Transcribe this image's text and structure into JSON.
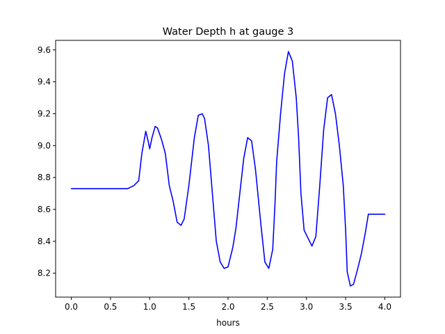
{
  "chart_data": {
    "type": "line",
    "title": "Water Depth h at gauge 3",
    "xlabel": "hours",
    "ylabel": "",
    "xlim": [
      -0.2,
      4.2
    ],
    "ylim": [
      8.05,
      9.66
    ],
    "xticks": [
      0.0,
      0.5,
      1.0,
      1.5,
      2.0,
      2.5,
      3.0,
      3.5,
      4.0
    ],
    "xtick_labels": [
      "0.0",
      "0.5",
      "1.0",
      "1.5",
      "2.0",
      "2.5",
      "3.0",
      "3.5",
      "4.0"
    ],
    "yticks": [
      8.2,
      8.4,
      8.6,
      8.8,
      9.0,
      9.2,
      9.4,
      9.6
    ],
    "ytick_labels": [
      "8.2",
      "8.4",
      "8.6",
      "8.8",
      "9.0",
      "9.2",
      "9.4",
      "9.6"
    ],
    "grid": false,
    "series": [
      {
        "color": "#0000ff",
        "x": [
          0.0,
          0.3,
          0.6,
          0.72,
          0.8,
          0.86,
          0.9,
          0.95,
          0.98,
          1.0,
          1.03,
          1.07,
          1.1,
          1.15,
          1.2,
          1.25,
          1.3,
          1.35,
          1.4,
          1.44,
          1.5,
          1.57,
          1.62,
          1.67,
          1.7,
          1.75,
          1.8,
          1.85,
          1.9,
          1.95,
          2.0,
          2.06,
          2.1,
          2.15,
          2.2,
          2.25,
          2.3,
          2.35,
          2.38,
          2.42,
          2.47,
          2.52,
          2.57,
          2.6,
          2.62,
          2.67,
          2.72,
          2.77,
          2.82,
          2.87,
          2.9,
          2.93,
          2.97,
          3.02,
          3.07,
          3.12,
          3.17,
          3.22,
          3.27,
          3.32,
          3.37,
          3.42,
          3.47,
          3.5,
          3.52,
          3.56,
          3.6,
          3.65,
          3.7,
          3.75,
          3.79,
          3.82,
          3.85,
          3.9,
          3.95,
          3.98,
          4.0
        ],
        "y": [
          8.73,
          8.73,
          8.73,
          8.73,
          8.75,
          8.78,
          8.95,
          9.09,
          9.03,
          8.98,
          9.05,
          9.12,
          9.11,
          9.04,
          8.95,
          8.75,
          8.65,
          8.52,
          8.5,
          8.54,
          8.75,
          9.05,
          9.19,
          9.2,
          9.17,
          9.0,
          8.7,
          8.4,
          8.27,
          8.23,
          8.24,
          8.36,
          8.48,
          8.7,
          8.92,
          9.05,
          9.03,
          8.85,
          8.7,
          8.5,
          8.27,
          8.23,
          8.35,
          8.65,
          8.9,
          9.2,
          9.45,
          9.59,
          9.53,
          9.3,
          9.05,
          8.7,
          8.47,
          8.42,
          8.37,
          8.43,
          8.75,
          9.1,
          9.3,
          9.32,
          9.2,
          9.0,
          8.75,
          8.47,
          8.21,
          8.12,
          8.13,
          8.22,
          8.32,
          8.45,
          8.57,
          8.57,
          8.57,
          8.57,
          8.57,
          8.57,
          8.57
        ]
      }
    ]
  }
}
